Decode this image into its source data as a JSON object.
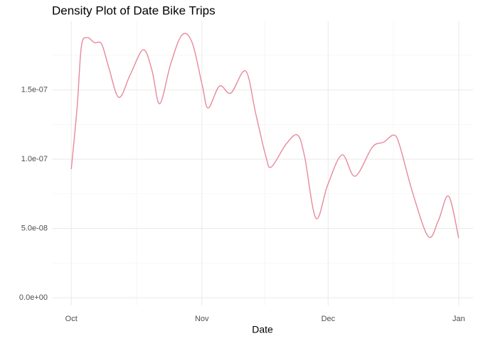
{
  "chart_data": {
    "type": "line",
    "title": "Density Plot of Date Bike Trips",
    "x_label": "Date",
    "x": [
      0,
      1.4,
      2.4,
      3.8,
      5.5,
      7.2,
      8.9,
      11.3,
      14.0,
      17.1,
      19.2,
      21.0,
      23.6,
      26.3,
      28.7,
      31.1,
      32.5,
      35.2,
      37.9,
      41.4,
      43.8,
      46.2,
      47.5,
      51.0,
      53.7,
      55.4,
      58.1,
      60.9,
      64.3,
      67.4,
      71.5,
      74.2,
      76.6,
      78.0,
      81.1,
      84.8,
      87.2,
      89.6,
      92.0
    ],
    "series": [
      {
        "color": "#e8899c",
        "values": [
          9.28e-08,
          1.38e-07,
          1.815e-07,
          1.877e-07,
          1.841e-07,
          1.831e-07,
          1.662e-07,
          1.446e-07,
          1.61e-07,
          1.79e-07,
          1.636e-07,
          1.4e-07,
          1.687e-07,
          1.897e-07,
          1.841e-07,
          1.533e-07,
          1.369e-07,
          1.528e-07,
          1.477e-07,
          1.636e-07,
          1.328e-07,
          1.02e-07,
          9.44e-08,
          1.108e-07,
          1.174e-07,
          1.02e-07,
          5.74e-08,
          8.15e-08,
          1.031e-07,
          8.77e-08,
          1.087e-07,
          1.123e-07,
          1.174e-07,
          1.097e-07,
          7.54e-08,
          4.41e-08,
          5.59e-08,
          7.33e-08,
          4.31e-08
        ]
      }
    ],
    "xlim": [
      -4.6,
      95.4
    ],
    "xticks": [
      {
        "value": 0,
        "label": "Oct"
      },
      {
        "value": 31,
        "label": "Nov"
      },
      {
        "value": 61,
        "label": "Dec"
      },
      {
        "value": 92,
        "label": "Jan"
      }
    ],
    "ylim": [
      -5.6e-09,
      1.995e-07
    ],
    "yticks": [
      {
        "value": 0,
        "label": "0.0e+00"
      },
      {
        "value": 5e-08,
        "label": "5.0e-08"
      },
      {
        "value": 1e-07,
        "label": "1.0e-07"
      },
      {
        "value": 1.5e-07,
        "label": "1.5e-07"
      }
    ],
    "grid": true
  }
}
